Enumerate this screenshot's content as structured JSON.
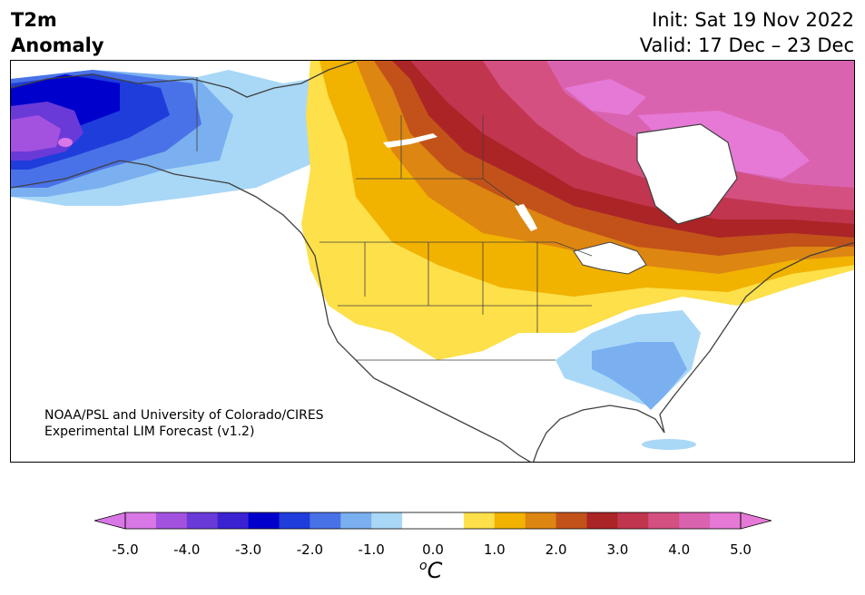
{
  "title": {
    "line1": "T2m",
    "line2": "Anomaly"
  },
  "dates": {
    "init": "Init: Sat 19 Nov 2022",
    "valid": "Valid: 17 Dec – 23 Dec"
  },
  "credit": {
    "line1": "NOAA/PSL and University of Colorado/CIRES",
    "line2": "Experimental LIM Forecast (v1.2)"
  },
  "colorbar": {
    "unit_base": "C",
    "unit_super": "o",
    "ticks": [
      "-5.0",
      "-4.0",
      "-3.0",
      "-2.0",
      "-1.0",
      "0.0",
      "1.0",
      "2.0",
      "3.0",
      "4.0",
      "5.0"
    ],
    "colors": [
      "#d977e6",
      "#a352e0",
      "#6a3ad9",
      "#3b22d1",
      "#0000cc",
      "#1f3ddb",
      "#4a72e8",
      "#7ab0f0",
      "#a9d8f7",
      "#ffffff",
      "#ffffff",
      "#fde04a",
      "#f2b200",
      "#dd8612",
      "#c25219",
      "#ab2426",
      "#c2354f",
      "#d35080",
      "#da63b0",
      "#e679d6"
    ],
    "under_color": "#d977e6",
    "over_color": "#e679d6"
  }
}
